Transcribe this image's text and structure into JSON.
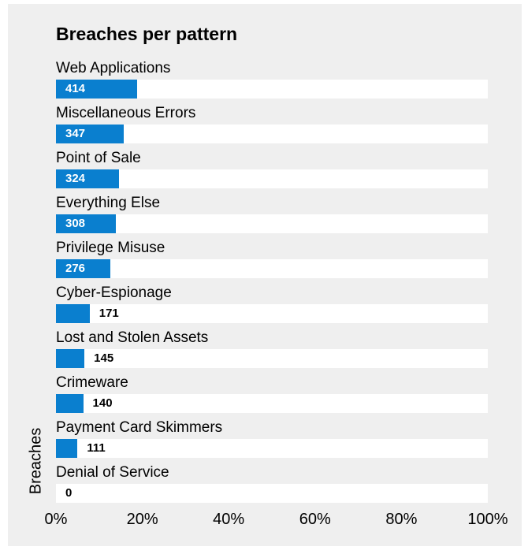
{
  "chart_data": {
    "type": "bar",
    "orientation": "horizontal",
    "title": "Breaches per pattern",
    "ylabel": "Breaches",
    "categories": [
      "Web Applications",
      "Miscellaneous Errors",
      "Point of Sale",
      "Everything Else",
      "Privilege Misuse",
      "Cyber-Espionage",
      "Lost and Stolen Assets",
      "Crimeware",
      "Payment Card Skimmers",
      "Denial of Service"
    ],
    "values": [
      414,
      347,
      324,
      308,
      276,
      171,
      145,
      140,
      111,
      0
    ],
    "value_labels": [
      "414",
      "347",
      "324",
      "308",
      "276",
      "171",
      "145",
      "140",
      "111",
      "0"
    ],
    "percent_of_breaches": [
      0.188,
      0.157,
      0.146,
      0.139,
      0.125,
      0.078,
      0.066,
      0.063,
      0.05,
      0.0
    ],
    "xticks": [
      "0%",
      "20%",
      "40%",
      "60%",
      "80%",
      "100%"
    ],
    "xlim": [
      0,
      1
    ],
    "bar_color": "#0a7fcf",
    "track_color": "#ffffff",
    "background_color": "#efefef",
    "grid": false,
    "legend": false
  }
}
